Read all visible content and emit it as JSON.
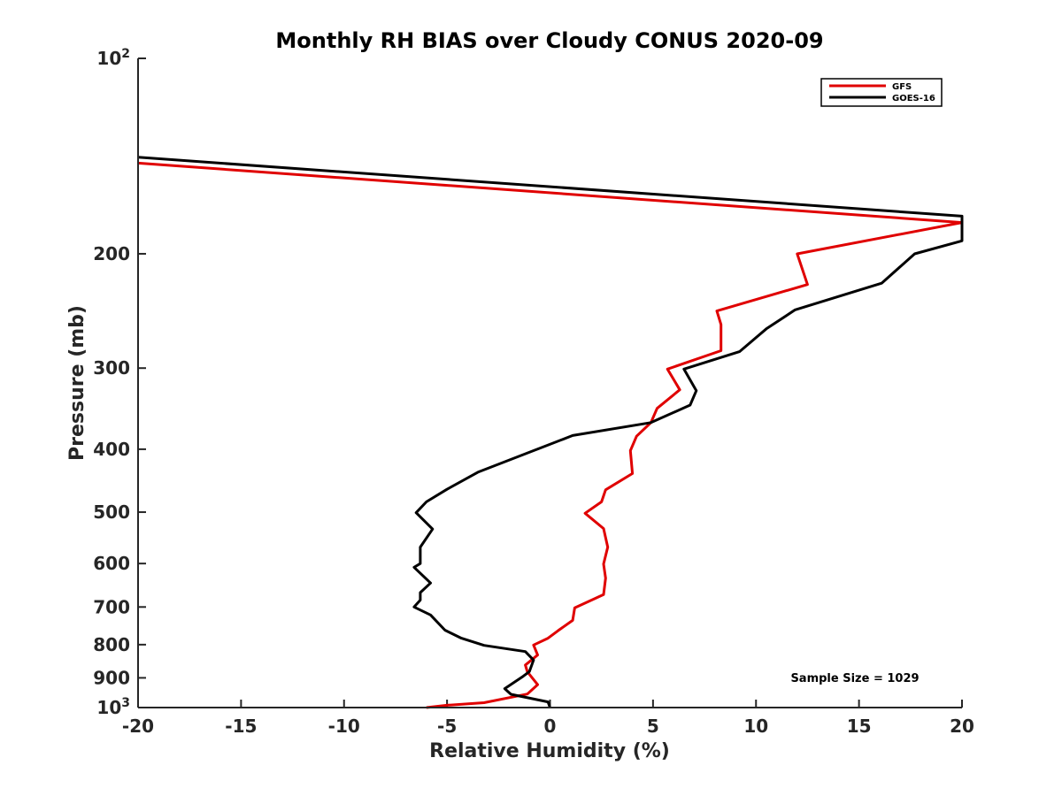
{
  "chart_data": {
    "type": "line",
    "title": "Monthly RH BIAS over Cloudy CONUS  2020-09",
    "xlabel": "Relative Humidity (%)",
    "ylabel": "Pressure (mb)",
    "xlim": [
      -20,
      20
    ],
    "ylim": [
      1000,
      100
    ],
    "y_scale": "log",
    "grid": false,
    "legend_position": "top-right",
    "x_ticks": [
      "-20",
      "-15",
      "-10",
      "-5",
      "0",
      "5",
      "10",
      "15",
      "20"
    ],
    "x_tick_values": [
      -20,
      -15,
      -10,
      -5,
      0,
      5,
      10,
      15,
      20
    ],
    "y_ticks": [
      {
        "value": 100,
        "base": "10",
        "exp": "2"
      },
      {
        "value": 200,
        "label": "200"
      },
      {
        "value": 300,
        "label": "300"
      },
      {
        "value": 400,
        "label": "400"
      },
      {
        "value": 500,
        "label": "500"
      },
      {
        "value": 600,
        "label": "600"
      },
      {
        "value": 700,
        "label": "700"
      },
      {
        "value": 800,
        "label": "800"
      },
      {
        "value": 900,
        "label": "900"
      },
      {
        "value": 1000,
        "base": "10",
        "exp": "3"
      }
    ],
    "series": [
      {
        "name": "GFS",
        "color": "#e00000",
        "points": [
          {
            "x": -20,
            "p": 145
          },
          {
            "x": 20,
            "p": 179
          },
          {
            "x": 12.0,
            "p": 200
          },
          {
            "x": 12.5,
            "p": 223
          },
          {
            "x": 8.1,
            "p": 245
          },
          {
            "x": 8.3,
            "p": 257
          },
          {
            "x": 8.3,
            "p": 282
          },
          {
            "x": 5.7,
            "p": 301
          },
          {
            "x": 6.3,
            "p": 324
          },
          {
            "x": 5.2,
            "p": 346
          },
          {
            "x": 4.9,
            "p": 364
          },
          {
            "x": 4.2,
            "p": 382
          },
          {
            "x": 3.9,
            "p": 402
          },
          {
            "x": 4.0,
            "p": 436
          },
          {
            "x": 2.7,
            "p": 462
          },
          {
            "x": 2.5,
            "p": 482
          },
          {
            "x": 1.7,
            "p": 502
          },
          {
            "x": 2.6,
            "p": 530
          },
          {
            "x": 2.8,
            "p": 566
          },
          {
            "x": 2.6,
            "p": 601
          },
          {
            "x": 2.7,
            "p": 632
          },
          {
            "x": 2.6,
            "p": 670
          },
          {
            "x": 1.2,
            "p": 702
          },
          {
            "x": 1.1,
            "p": 734
          },
          {
            "x": 0.4,
            "p": 761
          },
          {
            "x": -0.1,
            "p": 782
          },
          {
            "x": -0.8,
            "p": 801
          },
          {
            "x": -0.6,
            "p": 830
          },
          {
            "x": -1.2,
            "p": 860
          },
          {
            "x": -1.1,
            "p": 881
          },
          {
            "x": -0.6,
            "p": 922
          },
          {
            "x": -1.1,
            "p": 953
          },
          {
            "x": -3.2,
            "p": 983
          },
          {
            "x": -5.0,
            "p": 992
          },
          {
            "x": -6.0,
            "p": 1000
          }
        ]
      },
      {
        "name": "GOES-16",
        "color": "#000000",
        "points": [
          {
            "x": -20,
            "p": 142
          },
          {
            "x": 20,
            "p": 175
          },
          {
            "x": 20,
            "p": 191
          },
          {
            "x": 17.7,
            "p": 200
          },
          {
            "x": 16.1,
            "p": 222
          },
          {
            "x": 11.9,
            "p": 244
          },
          {
            "x": 10.5,
            "p": 261
          },
          {
            "x": 9.2,
            "p": 283
          },
          {
            "x": 6.5,
            "p": 301
          },
          {
            "x": 7.1,
            "p": 325
          },
          {
            "x": 6.8,
            "p": 342
          },
          {
            "x": 4.9,
            "p": 364
          },
          {
            "x": 1.1,
            "p": 381
          },
          {
            "x": -0.8,
            "p": 402
          },
          {
            "x": -3.5,
            "p": 434
          },
          {
            "x": -5.0,
            "p": 461
          },
          {
            "x": -6.0,
            "p": 482
          },
          {
            "x": -6.5,
            "p": 501
          },
          {
            "x": -5.7,
            "p": 531
          },
          {
            "x": -6.3,
            "p": 566
          },
          {
            "x": -6.3,
            "p": 600
          },
          {
            "x": -6.6,
            "p": 608
          },
          {
            "x": -5.8,
            "p": 643
          },
          {
            "x": -6.3,
            "p": 665
          },
          {
            "x": -6.3,
            "p": 683
          },
          {
            "x": -6.6,
            "p": 700
          },
          {
            "x": -5.8,
            "p": 720
          },
          {
            "x": -5.1,
            "p": 760
          },
          {
            "x": -4.3,
            "p": 782
          },
          {
            "x": -3.2,
            "p": 802
          },
          {
            "x": -1.2,
            "p": 820
          },
          {
            "x": -0.8,
            "p": 845
          },
          {
            "x": -1.0,
            "p": 880
          },
          {
            "x": -1.3,
            "p": 895
          },
          {
            "x": -2.2,
            "p": 935
          },
          {
            "x": -1.9,
            "p": 954
          },
          {
            "x": -0.1,
            "p": 980
          },
          {
            "x": 0.0,
            "p": 1000
          }
        ]
      }
    ],
    "annotations": [
      {
        "text": "Sample Size = 1029",
        "location": "bottom-right"
      }
    ]
  }
}
